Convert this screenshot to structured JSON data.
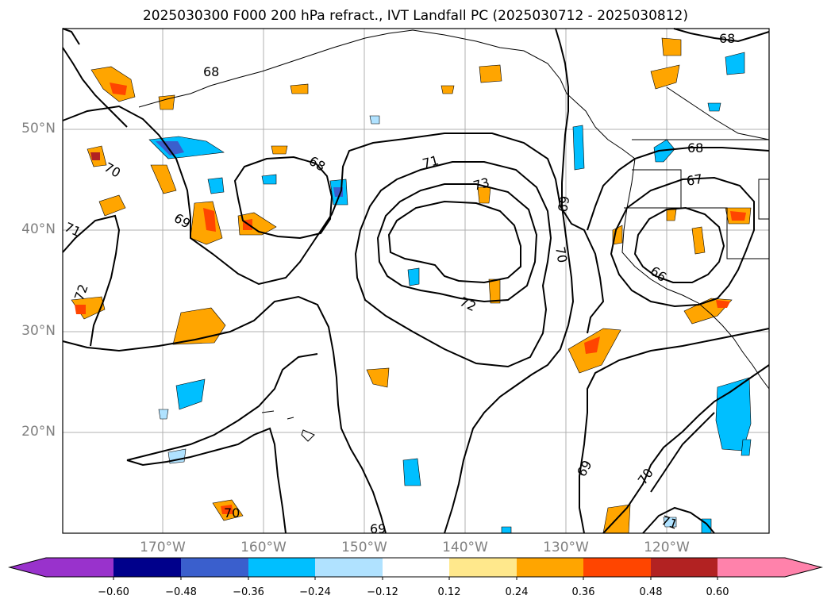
{
  "title": "2025030300 F000 200 hPa refract., IVT Landfall PC (2025030712 - 2025030812)",
  "lat_labels": [
    "50°N",
    "40°N",
    "30°N",
    "20°N"
  ],
  "lon_labels": [
    "170°W",
    "160°W",
    "150°W",
    "140°W",
    "130°W",
    "120°W"
  ],
  "contour_labels": [
    "68",
    "68",
    "68",
    "70",
    "71",
    "71",
    "73",
    "72",
    "69",
    "69",
    "70",
    "72",
    "69",
    "67",
    "66",
    "68",
    "69",
    "70",
    "71",
    "70"
  ],
  "colorbar": {
    "ticks": [
      "−0.60",
      "−0.48",
      "−0.36",
      "−0.24",
      "−0.12",
      "0.12",
      "0.24",
      "0.36",
      "0.48",
      "0.60"
    ],
    "colors": [
      "#9932cc",
      "#00008b",
      "#3a5fcd",
      "#00bfff",
      "#b0e2ff",
      "#ffffff",
      "#ffe88c",
      "#ffa500",
      "#ff4500",
      "#b22222",
      "#ff82ab"
    ]
  }
}
